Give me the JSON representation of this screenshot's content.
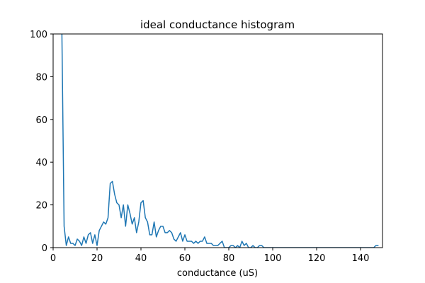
{
  "chart_data": {
    "type": "line",
    "title": "ideal conductance histogram",
    "xlabel": "conductance (uS)",
    "ylabel": "",
    "xlim": [
      0,
      150
    ],
    "ylim": [
      0,
      100
    ],
    "xticks": [
      0,
      20,
      40,
      60,
      80,
      100,
      120,
      140
    ],
    "yticks": [
      0,
      20,
      40,
      60,
      80,
      100
    ],
    "grid": false,
    "series": [
      {
        "color": "#1f77b4",
        "x": [
          4,
          5,
          6,
          7,
          8,
          9,
          10,
          11,
          12,
          13,
          14,
          15,
          16,
          17,
          18,
          19,
          20,
          21,
          22,
          23,
          24,
          25,
          26,
          27,
          28,
          29,
          30,
          31,
          32,
          33,
          34,
          35,
          36,
          37,
          38,
          39,
          40,
          41,
          42,
          43,
          44,
          45,
          46,
          47,
          48,
          49,
          50,
          51,
          52,
          53,
          54,
          55,
          56,
          57,
          58,
          59,
          60,
          61,
          62,
          63,
          64,
          65,
          66,
          67,
          68,
          69,
          70,
          71,
          72,
          73,
          74,
          75,
          76,
          77,
          78,
          79,
          80,
          81,
          82,
          83,
          84,
          85,
          86,
          87,
          88,
          89,
          90,
          91,
          92,
          93,
          94,
          95,
          96,
          97,
          98,
          99,
          100,
          101,
          102,
          103,
          104,
          105,
          106,
          107,
          108,
          109,
          110,
          111,
          112,
          113,
          114,
          115,
          116,
          117,
          118,
          119,
          120,
          121,
          122,
          123,
          124,
          125,
          126,
          127,
          128,
          129,
          130,
          131,
          132,
          133,
          134,
          135,
          136,
          137,
          138,
          139,
          140,
          141,
          142,
          143,
          144,
          145,
          146,
          147,
          148
        ],
        "y": [
          100,
          10,
          1,
          5,
          2,
          2,
          1,
          4,
          3,
          1,
          5,
          2,
          6,
          7,
          2,
          6,
          1,
          8,
          10,
          12,
          11,
          14,
          30,
          31,
          25,
          21,
          20,
          14,
          20,
          10,
          20,
          16,
          11,
          14,
          7,
          12,
          21,
          22,
          14,
          12,
          6,
          6,
          12,
          5,
          8,
          10,
          10,
          7,
          7,
          8,
          7,
          4,
          3,
          5,
          7,
          3,
          6,
          3,
          3,
          3,
          2,
          3,
          2,
          3,
          3,
          5,
          2,
          2,
          2,
          1,
          1,
          1,
          2,
          3,
          0,
          0,
          0,
          1,
          1,
          0,
          1,
          0,
          3,
          1,
          2,
          0,
          0,
          1,
          0,
          0,
          1,
          1,
          0,
          0,
          0,
          0,
          0,
          0,
          0,
          0,
          0,
          0,
          0,
          0,
          0,
          0,
          0,
          0,
          0,
          0,
          0,
          0,
          0,
          0,
          0,
          0,
          0,
          0,
          0,
          0,
          0,
          0,
          0,
          0,
          0,
          0,
          0,
          0,
          0,
          0,
          0,
          0,
          0,
          0,
          0,
          0,
          0,
          0,
          0,
          0,
          0,
          0,
          0,
          1,
          1
        ]
      }
    ]
  }
}
